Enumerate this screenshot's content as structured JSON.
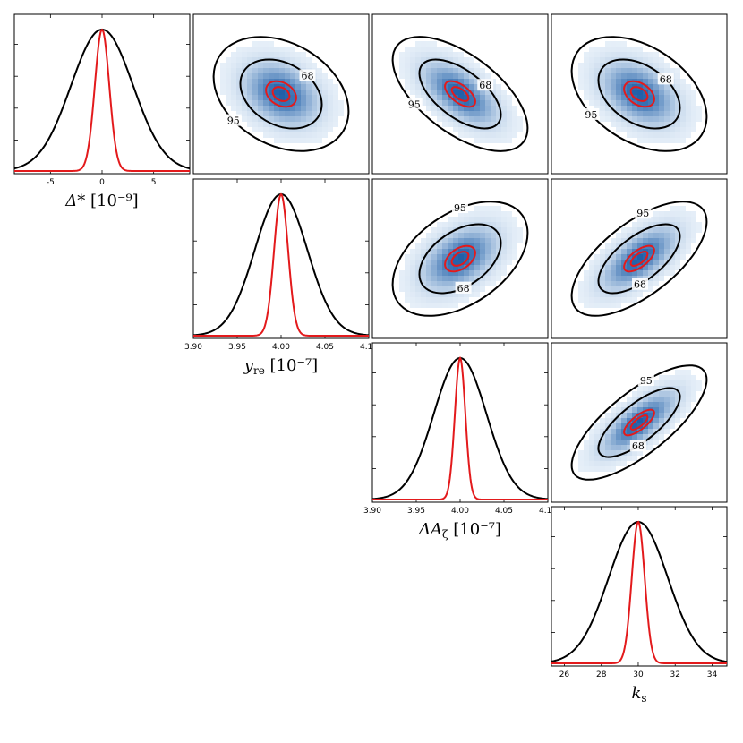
{
  "chart_data": {
    "type": "corner-plot",
    "contour_levels": [
      "68",
      "95"
    ],
    "colors": {
      "broad": "#000000",
      "narrow": "#e31a1c",
      "density": "#1f5fa8",
      "density_light": "#eaf2fa"
    },
    "params": [
      {
        "id": "delta_star",
        "label_main": "Δ*",
        "label_unit": "[10⁻⁹]",
        "range": [
          -8.5,
          8.5
        ],
        "ticks": [
          "-5",
          "0",
          "5"
        ],
        "tick_values": [
          -5,
          0,
          5
        ],
        "mean": 0,
        "sigma_broad": 3.0,
        "sigma_narrow": 0.7
      },
      {
        "id": "y_re",
        "label_main": "y",
        "label_sub": "re",
        "label_unit": "[10⁻⁷]",
        "range": [
          3.9,
          4.1
        ],
        "ticks": [
          "3.90",
          "3.95",
          "4.00",
          "4.05",
          "4.10"
        ],
        "tick_values": [
          3.9,
          3.95,
          4.0,
          4.05,
          4.1
        ],
        "mean": 4.0,
        "sigma_broad": 0.03,
        "sigma_narrow": 0.008
      },
      {
        "id": "delta_a_zeta",
        "label_main": "ΔA",
        "label_sub": "ζ",
        "label_unit": "[10⁻⁷]",
        "range": [
          3.9,
          4.1
        ],
        "ticks": [
          "3.90",
          "3.95",
          "4.00",
          "4.05",
          "4.10"
        ],
        "tick_values": [
          3.9,
          3.95,
          4.0,
          4.05,
          4.1
        ],
        "mean": 4.0,
        "sigma_broad": 0.03,
        "sigma_narrow": 0.006
      },
      {
        "id": "k_s",
        "label_main": "k",
        "label_sub": "s",
        "label_unit": "",
        "range": [
          25.3,
          34.8
        ],
        "ticks": [
          "26",
          "28",
          "30",
          "32",
          "34"
        ],
        "tick_values": [
          26,
          28,
          30,
          32,
          34
        ],
        "mean": 30,
        "sigma_broad": 1.6,
        "sigma_narrow": 0.35
      }
    ],
    "correlations": {
      "0-1": -0.3,
      "0-2": -0.6,
      "0-3": -0.4,
      "1-2": 0.45,
      "1-3": 0.65,
      "2-3": 0.75
    }
  }
}
